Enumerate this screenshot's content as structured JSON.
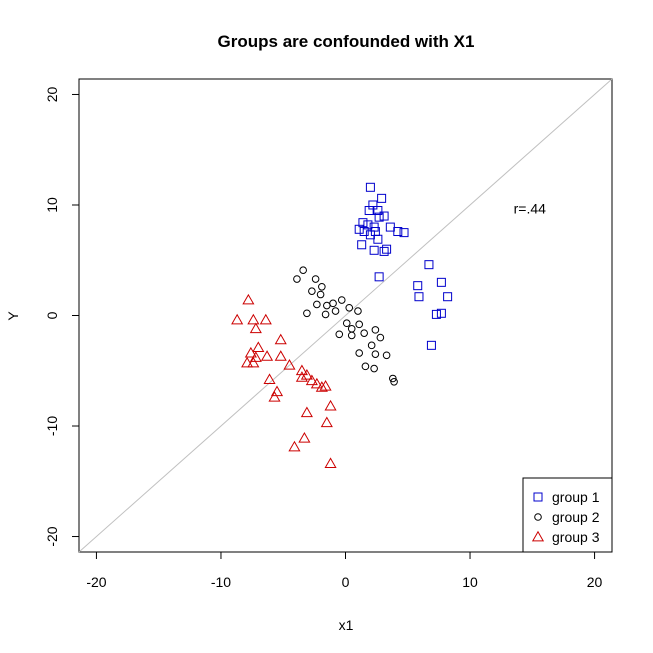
{
  "chart_data": {
    "type": "scatter",
    "title": "Groups are confounded with X1",
    "xlabel": "x1",
    "ylabel": "Y",
    "xlim": [
      -21.4,
      21.4
    ],
    "ylim": [
      -21.4,
      21.4
    ],
    "xticks": [
      -20,
      -10,
      0,
      10,
      20
    ],
    "yticks": [
      -20,
      -10,
      0,
      10,
      20
    ],
    "xtick_labels": [
      "-20",
      "-10",
      "0",
      "10",
      "20"
    ],
    "ytick_labels": [
      "-20",
      "-10",
      "0",
      "10",
      "20"
    ],
    "grid": false,
    "legend_position": "bottom-right",
    "annotation": {
      "text": "r=.44",
      "x": 13.5,
      "y": 9.7
    },
    "reference_line": {
      "from": [
        -21.4,
        -21.4
      ],
      "to": [
        21.4,
        21.4
      ],
      "color": "#c0c0c0"
    },
    "series": [
      {
        "name": "group 1",
        "marker": "square",
        "color": "#0000cc",
        "points": [
          [
            2.0,
            11.6
          ],
          [
            2.9,
            10.6
          ],
          [
            2.6,
            9.5
          ],
          [
            1.9,
            9.5
          ],
          [
            2.2,
            10.0
          ],
          [
            1.4,
            8.4
          ],
          [
            1.8,
            8.2
          ],
          [
            2.3,
            8.0
          ],
          [
            2.7,
            8.9
          ],
          [
            3.1,
            9.0
          ],
          [
            3.6,
            8.0
          ],
          [
            4.2,
            7.6
          ],
          [
            4.7,
            7.5
          ],
          [
            1.1,
            7.8
          ],
          [
            1.5,
            7.6
          ],
          [
            2.0,
            7.3
          ],
          [
            2.4,
            7.6
          ],
          [
            2.6,
            6.9
          ],
          [
            1.3,
            6.4
          ],
          [
            2.3,
            5.9
          ],
          [
            3.1,
            5.8
          ],
          [
            3.3,
            6.0
          ],
          [
            2.7,
            3.5
          ],
          [
            6.7,
            4.6
          ],
          [
            5.8,
            2.7
          ],
          [
            7.7,
            3.0
          ],
          [
            5.9,
            1.7
          ],
          [
            8.2,
            1.7
          ],
          [
            7.3,
            0.1
          ],
          [
            7.7,
            0.2
          ],
          [
            6.9,
            -2.7
          ]
        ]
      },
      {
        "name": "group 2",
        "marker": "circle",
        "color": "#000000",
        "points": [
          [
            -3.4,
            4.1
          ],
          [
            -3.9,
            3.3
          ],
          [
            -2.4,
            3.3
          ],
          [
            -2.7,
            2.2
          ],
          [
            -1.9,
            2.6
          ],
          [
            -2.0,
            1.9
          ],
          [
            -2.3,
            1.0
          ],
          [
            -1.5,
            0.9
          ],
          [
            -1.0,
            1.1
          ],
          [
            -0.3,
            1.4
          ],
          [
            -3.1,
            0.2
          ],
          [
            -1.6,
            0.1
          ],
          [
            -0.8,
            0.4
          ],
          [
            0.3,
            0.7
          ],
          [
            1.0,
            0.4
          ],
          [
            0.1,
            -0.7
          ],
          [
            0.5,
            -1.2
          ],
          [
            1.1,
            -0.8
          ],
          [
            -0.5,
            -1.7
          ],
          [
            0.5,
            -1.8
          ],
          [
            1.5,
            -1.6
          ],
          [
            2.4,
            -1.3
          ],
          [
            2.8,
            -2.0
          ],
          [
            2.1,
            -2.7
          ],
          [
            2.4,
            -3.5
          ],
          [
            1.1,
            -3.4
          ],
          [
            3.3,
            -3.6
          ],
          [
            1.6,
            -4.6
          ],
          [
            2.3,
            -4.8
          ],
          [
            3.8,
            -5.7
          ],
          [
            3.9,
            -6.0
          ]
        ]
      },
      {
        "name": "group 3",
        "marker": "triangle",
        "color": "#cc0000",
        "points": [
          [
            -7.8,
            1.4
          ],
          [
            -8.7,
            -0.4
          ],
          [
            -7.4,
            -0.4
          ],
          [
            -6.4,
            -0.4
          ],
          [
            -7.2,
            -1.2
          ],
          [
            -5.2,
            -2.2
          ],
          [
            -7.0,
            -2.9
          ],
          [
            -7.6,
            -3.4
          ],
          [
            -7.2,
            -3.8
          ],
          [
            -6.3,
            -3.7
          ],
          [
            -5.2,
            -3.7
          ],
          [
            -7.9,
            -4.3
          ],
          [
            -7.4,
            -4.3
          ],
          [
            -4.5,
            -4.5
          ],
          [
            -3.5,
            -5.0
          ],
          [
            -3.5,
            -5.6
          ],
          [
            -3.1,
            -5.4
          ],
          [
            -2.7,
            -5.9
          ],
          [
            -2.3,
            -6.2
          ],
          [
            -1.6,
            -6.4
          ],
          [
            -1.9,
            -6.5
          ],
          [
            -6.1,
            -5.8
          ],
          [
            -5.5,
            -6.9
          ],
          [
            -5.7,
            -7.4
          ],
          [
            -1.2,
            -8.2
          ],
          [
            -3.1,
            -8.8
          ],
          [
            -1.5,
            -9.7
          ],
          [
            -3.3,
            -11.1
          ],
          [
            -4.1,
            -11.9
          ],
          [
            -1.2,
            -13.4
          ]
        ]
      }
    ]
  }
}
